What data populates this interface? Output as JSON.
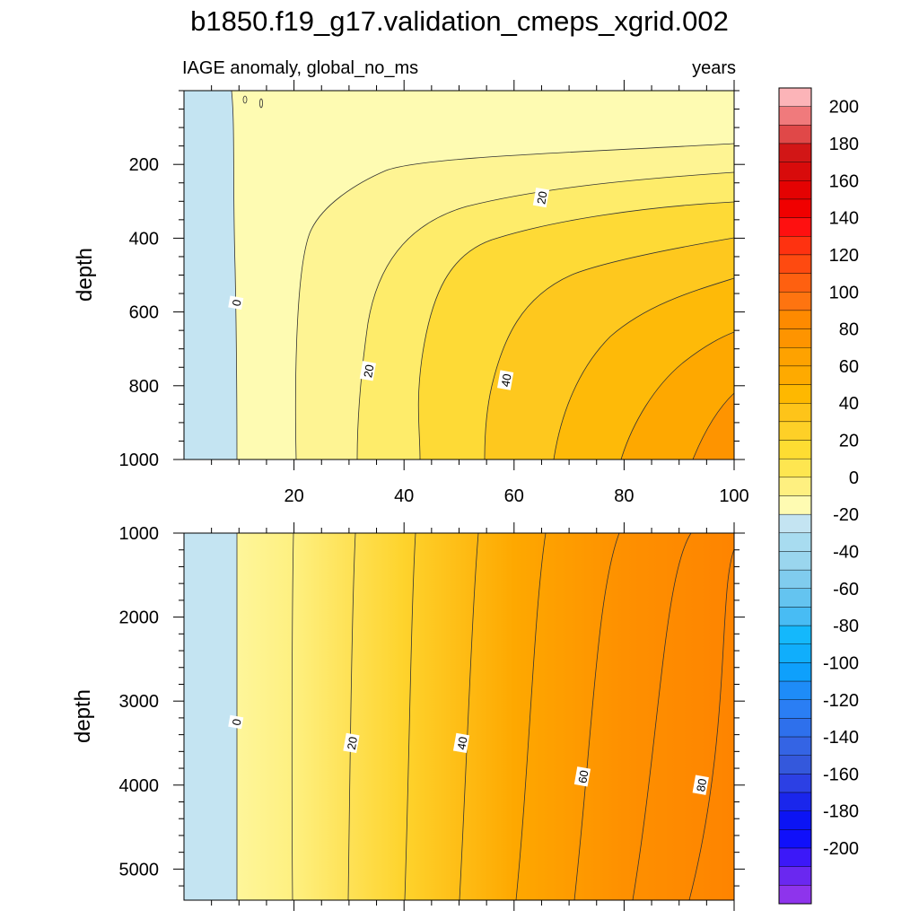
{
  "title": "b1850.f19_g17.validation_cmeps_xgrid.002",
  "subtitle_left": "IAGE anomaly, global_no_ms",
  "subtitle_right": "years",
  "chart_data": [
    {
      "type": "heatmap",
      "panel": "upper",
      "ylabel": "depth",
      "x_ticks": [
        20,
        40,
        60,
        80,
        100
      ],
      "xlim": [
        0,
        100
      ],
      "y_ticks": [
        200,
        400,
        600,
        800,
        1000
      ],
      "ylim": [
        0,
        1000
      ],
      "y_reversed": true,
      "contour_labels": [
        {
          "text": "0",
          "x": 9.5,
          "y": 575
        },
        {
          "text": "20",
          "x": 33.5,
          "y": 760
        },
        {
          "text": "40",
          "x": 58.5,
          "y": 785
        },
        {
          "text": "20",
          "x": 65,
          "y": 290
        }
      ]
    },
    {
      "type": "heatmap",
      "panel": "lower",
      "ylabel": "depth",
      "x_ticks": [
        20,
        40,
        60,
        80,
        100
      ],
      "xlim": [
        0,
        100
      ],
      "y_ticks": [
        1000,
        2000,
        3000,
        4000,
        5000
      ],
      "ylim": [
        1000,
        5370
      ],
      "y_reversed": true,
      "contour_labels": [
        {
          "text": "0",
          "x": 9.5,
          "y": 3250
        },
        {
          "text": "20",
          "x": 30.5,
          "y": 3500
        },
        {
          "text": "40",
          "x": 50.5,
          "y": 3500
        },
        {
          "text": "60",
          "x": 72.5,
          "y": 3900
        },
        {
          "text": "80",
          "x": 94,
          "y": 4000
        }
      ]
    }
  ],
  "colorbar": {
    "labels": [
      "200",
      "180",
      "160",
      "140",
      "120",
      "100",
      "80",
      "60",
      "40",
      "20",
      "0",
      "-20",
      "-40",
      "-60",
      "-80",
      "-100",
      "-120",
      "-140",
      "-160",
      "-180",
      "-200"
    ],
    "colors": [
      "#fcb4b8",
      "#f07a7c",
      "#e04848",
      "#d21616",
      "#d80b0b",
      "#e40202",
      "#f00000",
      "#fe1010",
      "#fe3210",
      "#fe4a10",
      "#fe6010",
      "#fe7410",
      "#fe8a00",
      "#fe9400",
      "#fea200",
      "#feaa00",
      "#feb800",
      "#fec419",
      "#fed027",
      "#fedd32",
      "#fee650",
      "#fef080",
      "#fefbb2",
      "#c4e4f2",
      "#a8dcf0",
      "#9ad6ee",
      "#80ccee",
      "#64c4f0",
      "#48bcf4",
      "#14b8fc",
      "#10aefc",
      "#0ea0fc",
      "#1e8cf8",
      "#2a7ef4",
      "#2e70ec",
      "#3464e4",
      "#3458dc",
      "#2c40e4",
      "#1a26ec",
      "#0c14f4",
      "#1010fa",
      "#3c18f8",
      "#6a28f0",
      "#8e34ec"
    ]
  }
}
